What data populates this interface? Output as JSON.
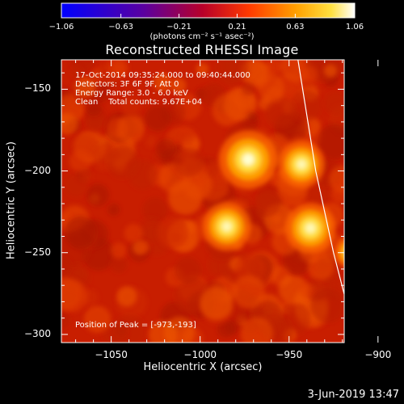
{
  "chart_data": {
    "type": "heatmap",
    "title": "Reconstructed RHESSI Image",
    "xlabel": "Heliocentric X (arcsec)",
    "ylabel": "Heliocentric Y (arcsec)",
    "xlim": [
      -1078,
      -919
    ],
    "ylim": [
      -305,
      -132
    ],
    "x_ticks": [
      -1050,
      -1000,
      -950,
      -900
    ],
    "x_tick_labels": [
      "−1050",
      "−1000",
      "−950",
      "−900"
    ],
    "y_ticks": [
      -150,
      -200,
      -250,
      -300
    ],
    "y_tick_labels": [
      "−150",
      "−200",
      "−250",
      "−300"
    ],
    "colorbar": {
      "min": -1.06,
      "max": 1.06,
      "ticks": [
        -1.06,
        -0.63,
        -0.21,
        0.21,
        0.63,
        1.06
      ],
      "tick_labels": [
        "−1.06",
        "−0.63",
        "−0.21",
        "0.21",
        "0.63",
        "1.06"
      ],
      "label": "(photons cm⁻² s⁻¹ asec⁻²)"
    },
    "sources": [
      {
        "x": -973,
        "y": -193,
        "peak": 1.06
      },
      {
        "x": -943,
        "y": -196,
        "peak": 0.85
      },
      {
        "x": -985,
        "y": -234,
        "peak": 0.88
      },
      {
        "x": -938,
        "y": -235,
        "peak": 0.92
      },
      {
        "x": -915,
        "y": -250,
        "peak": 0.6
      }
    ],
    "limb_curve_x_at_y": [
      [
        -132,
        -945
      ],
      [
        -200,
        -935
      ],
      [
        -250,
        -925
      ],
      [
        -305,
        -912
      ]
    ]
  },
  "annotations": {
    "line1": "17-Oct-2014 09:35:24.000 to 09:40:44.000",
    "line2": "Detectors: 3F 6F 9F, Att 0",
    "line3": "Energy Range: 3.0 - 6.0 keV",
    "line4": "Clean    Total counts: 9.67E+04",
    "peak": "Position of Peak = [-973,-193]"
  },
  "footer": {
    "date": "3-Jun-2019 13:47"
  },
  "colors": {
    "limb_line": "#ffffff",
    "axes": "#ffffff",
    "background": "#000000"
  }
}
